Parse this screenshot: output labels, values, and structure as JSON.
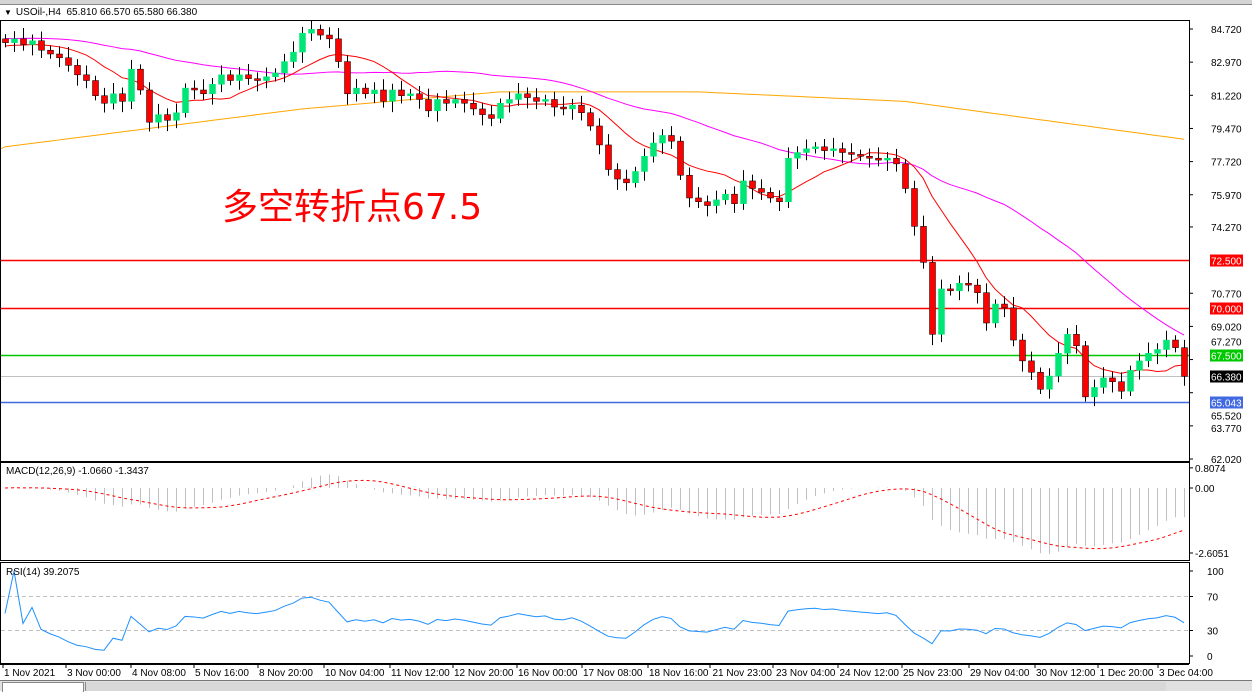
{
  "header": {
    "symbol": "USOil-,H4",
    "ohlc": "65.810 66.570 65.580 66.380",
    "menu_icon": "triangle-down-icon"
  },
  "annotation": "多空转折点67.5",
  "price_axis": {
    "ticks": [
      "84.720",
      "82.970",
      "81.220",
      "79.470",
      "77.720",
      "75.970",
      "74.270",
      "70.770",
      "69.020",
      "67.270",
      "65.520",
      "63.770",
      "62.020"
    ],
    "tick_values": [
      84.72,
      82.97,
      81.22,
      79.47,
      77.72,
      75.97,
      74.27,
      70.77,
      69.02,
      67.27,
      65.52,
      63.77,
      62.02
    ]
  },
  "levels": [
    {
      "label": "72.500",
      "value": 72.5,
      "color": "#ff0000"
    },
    {
      "label": "70.000",
      "value": 70.0,
      "color": "#ff0000"
    },
    {
      "label": "67.500",
      "value": 67.5,
      "color": "#00c800"
    },
    {
      "label": "66.380",
      "value": 66.38,
      "color": "#000000",
      "line_color": "#c0c0c0"
    },
    {
      "label": "65.043",
      "value": 65.043,
      "color": "#4169e1"
    }
  ],
  "time_axis": [
    "1 Nov 2021",
    "3 Nov 00:00",
    "4 Nov 08:00",
    "5 Nov 16:00",
    "8 Nov 20:00",
    "10 Nov 04:00",
    "11 Nov 12:00",
    "12 Nov 20:00",
    "16 Nov 00:00",
    "17 Nov 08:00",
    "18 Nov 16:00",
    "21 Nov 23:00",
    "23 Nov 04:00",
    "24 Nov 12:00",
    "25 Nov 23:00",
    "29 Nov 04:00",
    "30 Nov 12:00",
    "1 Dec 20:00",
    "3 Dec 04:00"
  ],
  "macd": {
    "label": "MACD(12,26,9) -1.0660 -1.3437",
    "ticks": [
      "0.8074",
      "0.00",
      "-2.6051"
    ],
    "tick_values": [
      0.8074,
      0,
      -2.6051
    ],
    "hist_color": "#c0c0c0",
    "signal_color": "#ff0000"
  },
  "rsi": {
    "label": "RSI(14) 39.2075",
    "ticks": [
      "100",
      "70",
      "30",
      "0"
    ],
    "tick_values": [
      100,
      70,
      30,
      0
    ],
    "color": "#1e90ff"
  },
  "chart_data": {
    "type": "candlestick",
    "symbol": "USOil-",
    "timeframe": "H4",
    "ylim": [
      62.02,
      85.2
    ],
    "bull_color": "#00e676",
    "bear_color": "#ff0000",
    "closes": [
      84.0,
      84.2,
      83.9,
      84.1,
      83.6,
      83.4,
      83.2,
      82.8,
      82.3,
      82.0,
      81.2,
      80.8,
      81.3,
      80.9,
      82.6,
      81.5,
      79.8,
      80.2,
      79.9,
      80.3,
      81.6,
      81.5,
      81.3,
      81.8,
      82.3,
      82.0,
      82.3,
      82.1,
      82.0,
      82.2,
      82.4,
      83.0,
      83.5,
      84.5,
      84.7,
      84.4,
      84.2,
      83.0,
      81.3,
      81.6,
      81.3,
      81.5,
      80.9,
      81.5,
      81.2,
      81.3,
      81.0,
      80.4,
      81.0,
      80.8,
      81.0,
      80.8,
      80.5,
      80.2,
      80.0,
      80.8,
      81.0,
      81.3,
      81.1,
      80.9,
      81.0,
      80.6,
      80.5,
      80.7,
      80.3,
      79.6,
      78.6,
      77.3,
      76.8,
      76.6,
      77.2,
      78.0,
      78.7,
      79.1,
      78.8,
      77.0,
      75.8,
      75.6,
      75.4,
      75.7,
      76.0,
      75.5,
      76.7,
      76.3,
      76.1,
      75.8,
      75.6,
      77.9,
      78.2,
      78.4,
      78.5,
      78.3,
      78.4,
      78.2,
      78.1,
      78.0,
      77.9,
      77.8,
      77.9,
      77.6,
      76.3,
      74.3,
      72.4,
      68.6,
      71.0,
      70.9,
      71.3,
      71.2,
      70.8,
      69.2,
      70.2,
      70.0,
      68.3,
      67.2,
      66.6,
      65.7,
      66.4,
      67.6,
      68.6,
      68.0,
      65.3,
      65.8,
      66.3,
      66.1,
      65.6,
      66.7,
      67.2,
      67.6,
      67.8,
      68.3,
      67.9,
      66.38
    ],
    "ma_fast_color": "#ff0000",
    "ma_mid_color": "#ff00ff",
    "ma_slow_color": "#ffa500",
    "ma_slow": [
      [
        0,
        78.5
      ],
      [
        33,
        80.5
      ],
      [
        55,
        81.4
      ],
      [
        77,
        81.4
      ],
      [
        100,
        80.9
      ],
      [
        131,
        78.9
      ]
    ]
  }
}
